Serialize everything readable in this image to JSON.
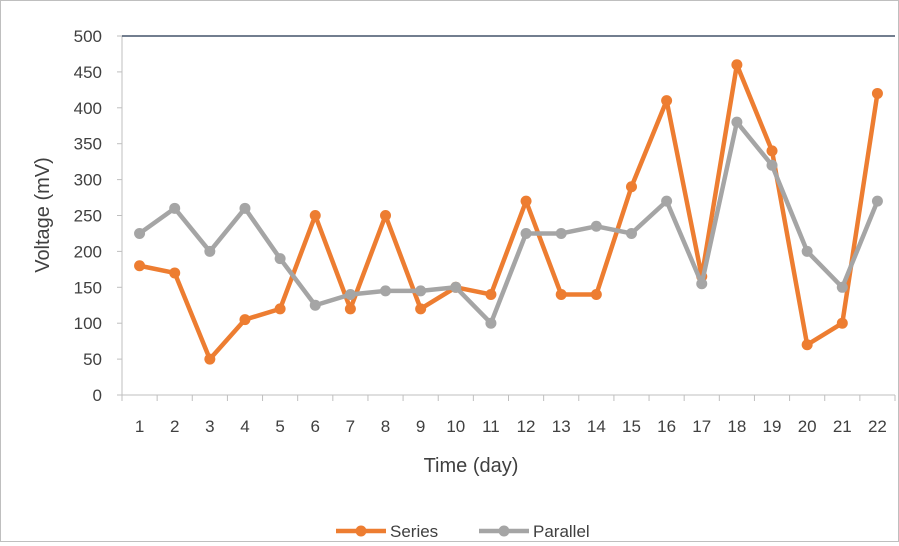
{
  "chart_data": {
    "type": "line",
    "xlabel": "Time (day)",
    "ylabel": "Voltage (mV)",
    "ylim": [
      0,
      500
    ],
    "yticks": [
      0,
      50,
      100,
      150,
      200,
      250,
      300,
      350,
      400,
      450,
      500
    ],
    "categories": [
      "1",
      "2",
      "3",
      "4",
      "5",
      "6",
      "7",
      "8",
      "9",
      "10",
      "11",
      "12",
      "13",
      "14",
      "15",
      "16",
      "17",
      "18",
      "19",
      "20",
      "21",
      "22"
    ],
    "grid": false,
    "legend_position": "bottom",
    "series": [
      {
        "name": "Series",
        "color": "#ed7d31",
        "values": [
          180,
          170,
          50,
          105,
          120,
          250,
          120,
          250,
          120,
          150,
          140,
          270,
          140,
          140,
          290,
          410,
          165,
          460,
          340,
          70,
          100,
          420
        ]
      },
      {
        "name": "Parallel",
        "color": "#a5a5a5",
        "values": [
          225,
          260,
          200,
          260,
          190,
          125,
          140,
          145,
          145,
          150,
          100,
          225,
          225,
          235,
          225,
          270,
          155,
          380,
          320,
          200,
          150,
          270
        ]
      }
    ]
  }
}
